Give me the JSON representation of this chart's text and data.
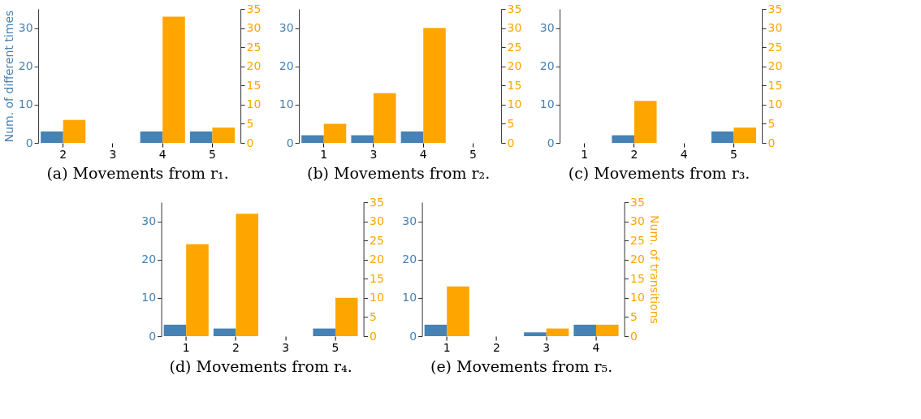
{
  "chart_data": [
    {
      "type": "bar",
      "title": "(a) Movements from r₁.",
      "ylabel": "Num. of different times",
      "categories": [
        "2",
        "3",
        "4",
        "5"
      ],
      "ylim": [
        0,
        35
      ],
      "yticks": [
        0,
        10,
        20,
        30
      ],
      "y2lim": [
        0,
        35
      ],
      "y2ticks": [
        0,
        5,
        10,
        15,
        20,
        25,
        30,
        35
      ],
      "grid": false,
      "series": [
        {
          "color": "#4682b4",
          "values": [
            3,
            null,
            3,
            3
          ]
        },
        {
          "color": "#ffa500",
          "axis": "y2",
          "values": [
            6,
            null,
            33,
            4
          ]
        }
      ]
    },
    {
      "type": "bar",
      "title": "(b) Movements from r₂.",
      "categories": [
        "1",
        "3",
        "4",
        "5"
      ],
      "ylim": [
        0,
        35
      ],
      "yticks": [
        0,
        10,
        20,
        30
      ],
      "y2lim": [
        0,
        35
      ],
      "y2ticks": [
        0,
        5,
        10,
        15,
        20,
        25,
        30,
        35
      ],
      "grid": false,
      "series": [
        {
          "color": "#4682b4",
          "values": [
            2,
            2,
            3,
            null
          ]
        },
        {
          "color": "#ffa500",
          "axis": "y2",
          "values": [
            5,
            13,
            30,
            null
          ]
        }
      ]
    },
    {
      "type": "bar",
      "title": "(c) Movements from r₃.",
      "categories": [
        "1",
        "2",
        "4",
        "5"
      ],
      "ylim": [
        0,
        35
      ],
      "yticks": [
        0,
        10,
        20,
        30
      ],
      "y2lim": [
        0,
        35
      ],
      "y2ticks": [
        0,
        5,
        10,
        15,
        20,
        25,
        30,
        35
      ],
      "grid": false,
      "series": [
        {
          "color": "#4682b4",
          "values": [
            null,
            2,
            null,
            3
          ]
        },
        {
          "color": "#ffa500",
          "axis": "y2",
          "values": [
            null,
            11,
            null,
            4
          ]
        }
      ]
    },
    {
      "type": "bar",
      "title": "(d) Movements from r₄.",
      "categories": [
        "1",
        "2",
        "3",
        "5"
      ],
      "ylim": [
        0,
        35
      ],
      "yticks": [
        0,
        10,
        20,
        30
      ],
      "y2lim": [
        0,
        35
      ],
      "y2ticks": [
        0,
        5,
        10,
        15,
        20,
        25,
        30,
        35
      ],
      "grid": false,
      "series": [
        {
          "color": "#4682b4",
          "values": [
            3,
            2,
            null,
            2
          ]
        },
        {
          "color": "#ffa500",
          "axis": "y2",
          "values": [
            24,
            32,
            null,
            10
          ]
        }
      ]
    },
    {
      "type": "bar",
      "title": "(e) Movements from r₅.",
      "y2label": "Num. of transitions",
      "categories": [
        "1",
        "2",
        "3",
        "4"
      ],
      "ylim": [
        0,
        35
      ],
      "yticks": [
        0,
        10,
        20,
        30
      ],
      "y2lim": [
        0,
        35
      ],
      "y2ticks": [
        0,
        5,
        10,
        15,
        20,
        25,
        30,
        35
      ],
      "grid": false,
      "series": [
        {
          "color": "#4682b4",
          "values": [
            3,
            null,
            1,
            3
          ]
        },
        {
          "color": "#ffa500",
          "axis": "y2",
          "values": [
            13,
            null,
            2,
            3
          ]
        }
      ]
    }
  ]
}
